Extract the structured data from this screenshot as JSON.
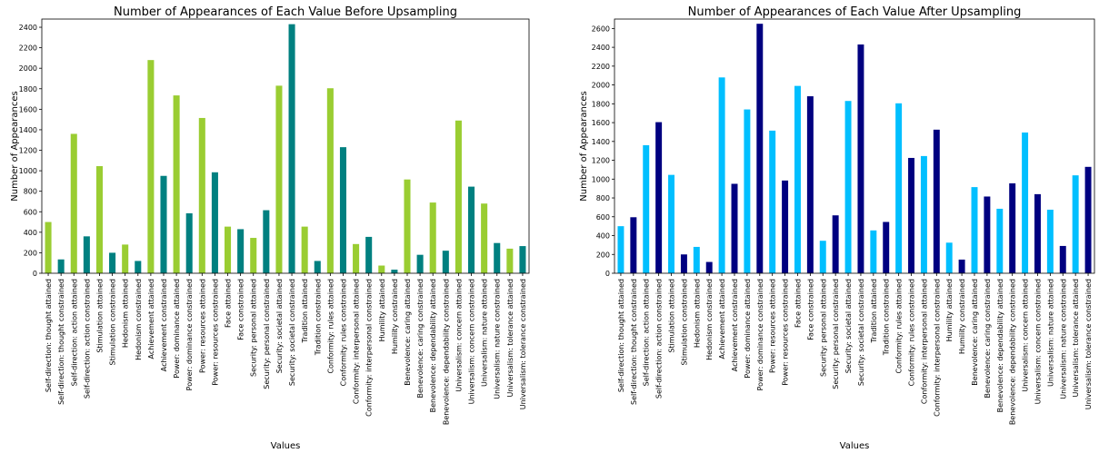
{
  "chart_data": [
    {
      "type": "bar",
      "title": "Number of Appearances of Each Value Before Upsampling",
      "xlabel": "Values",
      "ylabel": "Number of Appearances",
      "ylim": [
        0,
        2480
      ],
      "yticks": [
        0,
        200,
        400,
        600,
        800,
        1000,
        1200,
        1400,
        1600,
        1800,
        2000,
        2200,
        2400
      ],
      "colors": {
        "attained": "#9acd32",
        "constrained": "#008080"
      },
      "categories": [
        "Self-direction: thought attained",
        "Self-direction: thought constrained",
        "Self-direction: action attained",
        "Self-direction: action constrained",
        "Stimulation attained",
        "Stimulation constrained",
        "Hedonism attained",
        "Hedonism constrained",
        "Achievement attained",
        "Achievement constrained",
        "Power: dominance attained",
        "Power: dominance constrained",
        "Power: resources attained",
        "Power: resources constrained",
        "Face attained",
        "Face constrained",
        "Security: personal attained",
        "Security: personal constrained",
        "Security: societal attained",
        "Security: societal constrained",
        "Tradition attained",
        "Tradition constrained",
        "Conformity: rules attained",
        "Conformity: rules constrained",
        "Conformity: interpersonal attained",
        "Conformity: interpersonal constrained",
        "Humility attained",
        "Humility constrained",
        "Benevolence: caring attained",
        "Benevolence: caring constrained",
        "Benevolence: dependability attained",
        "Benevolence: dependability constrained",
        "Universalism: concern attained",
        "Universalism: concern constrained",
        "Universalism: nature attained",
        "Universalism: nature constrained",
        "Universalism: tolerance attained",
        "Universalism: tolerance constrained"
      ],
      "values": [
        500,
        135,
        1360,
        360,
        1045,
        200,
        280,
        120,
        2080,
        950,
        1735,
        585,
        1515,
        985,
        455,
        430,
        345,
        615,
        1830,
        2430,
        455,
        120,
        1805,
        1230,
        285,
        355,
        75,
        35,
        915,
        180,
        690,
        220,
        1490,
        845,
        680,
        295,
        240,
        265
      ]
    },
    {
      "type": "bar",
      "title": "Number of Appearances of Each Value After Upsampling",
      "xlabel": "Values",
      "ylabel": "Number of Appearances",
      "ylim": [
        0,
        2700
      ],
      "yticks": [
        0,
        200,
        400,
        600,
        800,
        1000,
        1200,
        1400,
        1600,
        1800,
        2000,
        2200,
        2400,
        2600
      ],
      "colors": {
        "attained": "#00bfff",
        "constrained": "#000080"
      },
      "categories": [
        "Self-direction: thought attained",
        "Self-direction: thought constrained",
        "Self-direction: action attained",
        "Self-direction: action constrained",
        "Stimulation attained",
        "Stimulation constrained",
        "Hedonism attained",
        "Hedonism constrained",
        "Achievement attained",
        "Achievement constrained",
        "Power: dominance attained",
        "Power: dominance constrained",
        "Power: resources attained",
        "Power: resources constrained",
        "Face attained",
        "Face constrained",
        "Security: personal attained",
        "Security: personal constrained",
        "Security: societal attained",
        "Security: societal constrained",
        "Tradition attained",
        "Tradition constrained",
        "Conformity: rules attained",
        "Conformity: rules constrained",
        "Conformity: interpersonal attained",
        "Conformity: interpersonal constrained",
        "Humility attained",
        "Humility constrained",
        "Benevolence: caring attained",
        "Benevolence: caring constrained",
        "Benevolence: dependability attained",
        "Benevolence: dependability constrained",
        "Universalism: concern attained",
        "Universalism: concern constrained",
        "Universalism: nature attained",
        "Universalism: nature constrained",
        "Universalism: tolerance attained",
        "Universalism: tolerance constrained"
      ],
      "values": [
        500,
        595,
        1360,
        1605,
        1045,
        200,
        280,
        120,
        2080,
        950,
        1740,
        2650,
        1515,
        985,
        1990,
        1880,
        345,
        615,
        1830,
        2430,
        455,
        545,
        1805,
        1225,
        1245,
        1525,
        325,
        145,
        915,
        815,
        685,
        955,
        1495,
        840,
        675,
        290,
        1040,
        1130
      ]
    }
  ]
}
